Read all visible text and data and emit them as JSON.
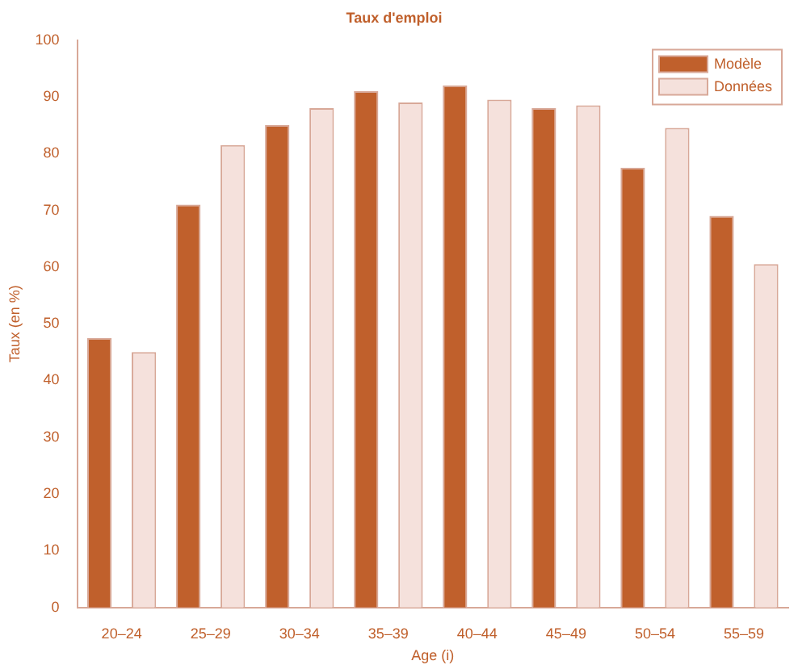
{
  "chart_data": {
    "type": "bar",
    "title": "Taux d'emploi",
    "xlabel": "Age (i)",
    "ylabel": "Taux (en %)",
    "categories": [
      "20–24",
      "25–29",
      "30–34",
      "35–39",
      "40–44",
      "45–49",
      "50–54",
      "55–59"
    ],
    "series": [
      {
        "name": "Modèle",
        "color": "#c0602c",
        "values": [
          47.5,
          71,
          85,
          91,
          92,
          88,
          77.5,
          69
        ]
      },
      {
        "name": "Données",
        "color": "#f5e1dc",
        "values": [
          45,
          81.5,
          88,
          89,
          89.5,
          88.5,
          84.5,
          60.5
        ]
      }
    ],
    "ylim": [
      0,
      100
    ],
    "yticks": [
      0,
      10,
      20,
      30,
      40,
      50,
      60,
      70,
      80,
      90,
      100
    ],
    "grid": false,
    "legend": "top right"
  }
}
